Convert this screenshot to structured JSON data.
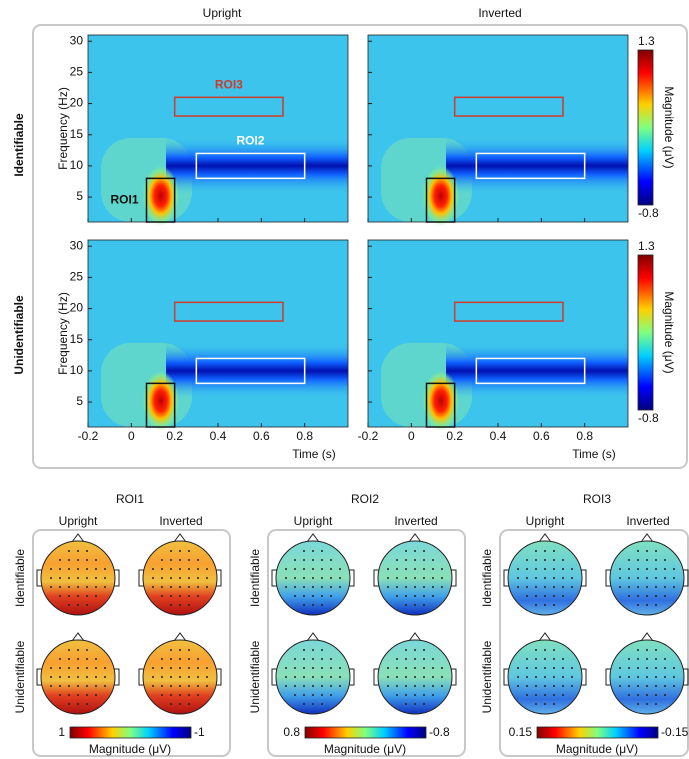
{
  "column_titles": [
    "Upright",
    "Inverted"
  ],
  "row_titles": [
    "Identifiable",
    "Unidentifiable"
  ],
  "tf": {
    "xlabel": "Time (s)",
    "ylabel": "Frequency (Hz)",
    "xlim": [
      -0.2,
      1.0
    ],
    "ylim": [
      1,
      31
    ],
    "xticks": [
      -0.2,
      0,
      0.2,
      0.4,
      0.6,
      0.8
    ],
    "yticks": [
      5,
      10,
      15,
      20,
      25,
      30
    ],
    "rois": [
      {
        "label": "ROI1",
        "color": "#111111",
        "time": [
          0.07,
          0.2
        ],
        "freq": [
          1,
          8
        ]
      },
      {
        "label": "ROI2",
        "color": "#ffffff",
        "time": [
          0.3,
          0.8
        ],
        "freq": [
          8,
          12
        ]
      },
      {
        "label": "ROI3",
        "color": "#d03a2a",
        "time": [
          0.2,
          0.7
        ],
        "freq": [
          18,
          21
        ]
      }
    ],
    "colorbar": {
      "label": "Magnitude (μV)",
      "lim": [
        -0.8,
        1.3
      ]
    }
  },
  "topographies": [
    {
      "title": "ROI1",
      "colorbar_lim": [
        1,
        -1
      ],
      "colorbar_label": "Magnitude (μV)"
    },
    {
      "title": "ROI2",
      "colorbar_lim": [
        0.8,
        -0.8
      ],
      "colorbar_label": "Magnitude (μV)"
    },
    {
      "title": "ROI3",
      "colorbar_lim": [
        0.15,
        -0.15
      ],
      "colorbar_label": "Magnitude (μV)"
    }
  ]
}
